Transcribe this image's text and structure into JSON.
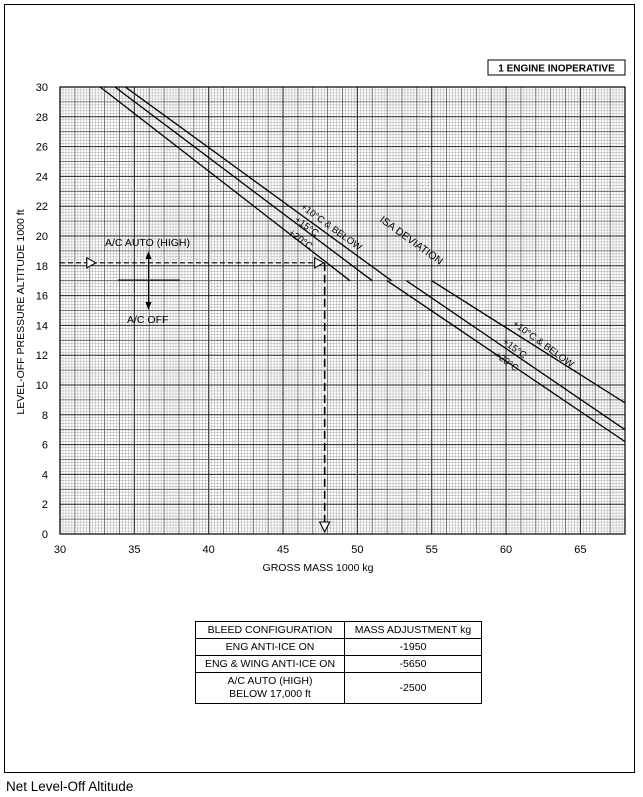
{
  "chart_data": {
    "type": "line",
    "badge": "1 ENGINE INOPERATIVE",
    "xlabel": "GROSS MASS  1000 kg",
    "ylabel": "LEVEL-OFF PRESSURE ALTITUDE  1000 ft",
    "xlim": [
      30,
      68
    ],
    "ylim": [
      0,
      30
    ],
    "x_ticks": [
      30,
      35,
      40,
      45,
      50,
      55,
      60,
      65
    ],
    "y_ticks": [
      0,
      2,
      4,
      6,
      8,
      10,
      12,
      14,
      16,
      18,
      20,
      22,
      24,
      26,
      28,
      30
    ],
    "grid": true,
    "series_ac_off": [
      {
        "name": "+10°C & BELOW",
        "points": [
          [
            34.4,
            30
          ],
          [
            52.3,
            17
          ]
        ]
      },
      {
        "name": "+15°C",
        "points": [
          [
            33.7,
            30
          ],
          [
            51.0,
            17
          ]
        ]
      },
      {
        "name": "+20°C",
        "points": [
          [
            32.7,
            30
          ],
          [
            49.5,
            17
          ]
        ]
      }
    ],
    "series_ac_auto": [
      {
        "name": "+10°C & BELOW",
        "points": [
          [
            55.0,
            17
          ],
          [
            68.0,
            8.8
          ]
        ]
      },
      {
        "name": "+15°C",
        "points": [
          [
            53.3,
            17
          ],
          [
            68.0,
            7.0
          ]
        ]
      },
      {
        "name": "+20°C",
        "points": [
          [
            52.0,
            17
          ],
          [
            68.0,
            6.2
          ]
        ]
      }
    ],
    "left_labels": {
      "t10": "+10°C & BELOW",
      "t15": "+15°C",
      "t20": "+20°C",
      "isa": "ISA DEVIATION"
    },
    "right_labels": {
      "t10": "+10°C & BELOW",
      "t15": "+15°C",
      "t20": "+20°C"
    },
    "ac_auto_label": "A/C AUTO (HIGH)",
    "ac_off_label": "A/C OFF",
    "example": {
      "altitude": 18.2,
      "mass": 47.8,
      "start_mass": 31.8
    }
  },
  "bleed_table": {
    "headers": [
      "BLEED CONFIGURATION",
      "MASS ADJUSTMENT  kg"
    ],
    "rows": [
      {
        "config": "ENG ANTI-ICE ON",
        "adjustment": "-1950"
      },
      {
        "config": "ENG & WING ANTI-ICE ON",
        "adjustment": "-5650"
      },
      {
        "config": "A/C AUTO (HIGH)",
        "config2": "BELOW 17,000 ft",
        "adjustment": "-2500"
      }
    ]
  },
  "caption": "Net Level-Off Altitude"
}
